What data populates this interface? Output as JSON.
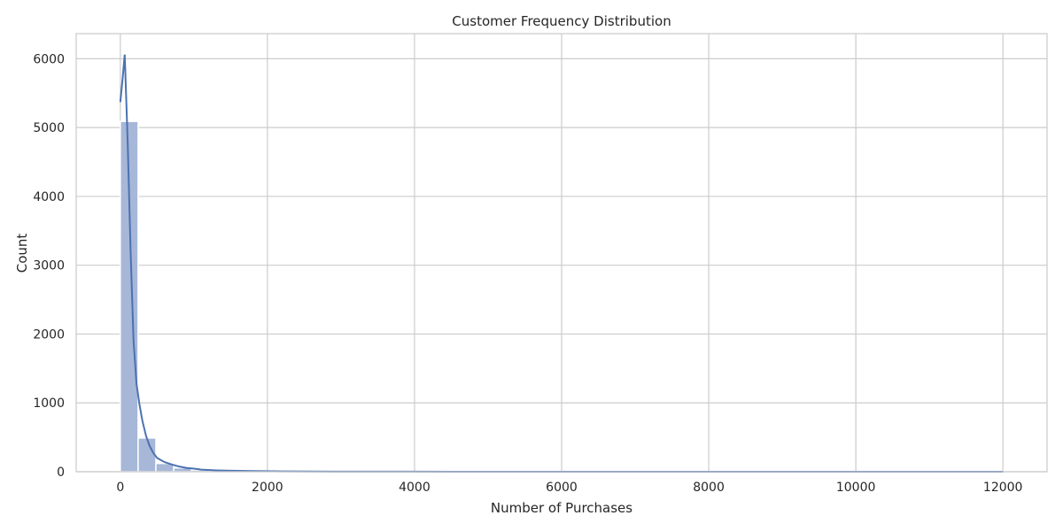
{
  "chart_data": {
    "type": "bar",
    "title": "Customer Frequency Distribution",
    "xlabel": "Number of Purchases",
    "ylabel": "Count",
    "xlim": [
      -600,
      12600
    ],
    "ylim": [
      0,
      6365
    ],
    "x_ticks": [
      0,
      2000,
      4000,
      6000,
      8000,
      10000,
      12000
    ],
    "y_ticks": [
      0,
      1000,
      2000,
      3000,
      4000,
      5000,
      6000
    ],
    "grid": true,
    "legend": "none",
    "bin_width": 242,
    "bins": [
      {
        "x0": 0,
        "x1": 242,
        "count": 5090
      },
      {
        "x0": 242,
        "x1": 484,
        "count": 490
      },
      {
        "x0": 484,
        "x1": 726,
        "count": 120
      },
      {
        "x0": 726,
        "x1": 968,
        "count": 55
      },
      {
        "x0": 968,
        "x1": 1210,
        "count": 25
      },
      {
        "x0": 1210,
        "x1": 1452,
        "count": 14
      },
      {
        "x0": 1452,
        "x1": 1694,
        "count": 9
      },
      {
        "x0": 1694,
        "x1": 1936,
        "count": 6
      },
      {
        "x0": 1936,
        "x1": 2178,
        "count": 3
      },
      {
        "x0": 2178,
        "x1": 2420,
        "count": 2
      },
      {
        "x0": 2420,
        "x1": 2662,
        "count": 2
      },
      {
        "x0": 2662,
        "x1": 2904,
        "count": 1
      }
    ],
    "kde": {
      "x": [
        0,
        30,
        60,
        100,
        140,
        180,
        220,
        260,
        300,
        350,
        400,
        450,
        500,
        600,
        700,
        800,
        900,
        1000,
        1100,
        1300,
        1500,
        1800,
        2200,
        2600,
        3000,
        4000,
        5000,
        6000,
        7000,
        8000,
        9000,
        10000,
        11000,
        12000
      ],
      "y": [
        5370,
        5700,
        6060,
        4800,
        3200,
        1900,
        1280,
        980,
        740,
        520,
        370,
        270,
        200,
        140,
        105,
        75,
        55,
        45,
        30,
        20,
        14,
        9,
        5,
        3,
        2,
        1,
        0.5,
        0.3,
        0.2,
        0.1,
        0.1,
        0.1,
        0.05,
        0.05
      ]
    },
    "colors": {
      "bar_fill": "#a6b7d8",
      "bar_edge": "#ffffff",
      "kde_line": "#4c72b0",
      "grid": "#cccccc",
      "axes_edge": "#cccccc"
    }
  }
}
